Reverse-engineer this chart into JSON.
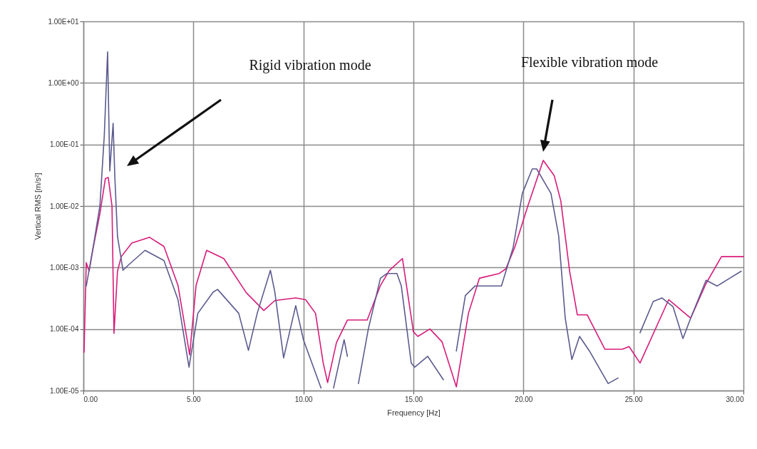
{
  "chart_data": {
    "type": "line",
    "xlabel": "Frequency [Hz]",
    "ylabel": "Vertical RMS [m/s²]",
    "log": "y",
    "grid": true,
    "xlim": [
      0,
      30
    ],
    "ylim": [
      1e-05,
      10
    ],
    "xticks": [
      {
        "value": 0,
        "label": "0.00"
      },
      {
        "value": 5,
        "label": "5.00"
      },
      {
        "value": 10,
        "label": "10.00"
      },
      {
        "value": 15,
        "label": "15.00"
      },
      {
        "value": 20,
        "label": "20.00"
      },
      {
        "value": 25,
        "label": "25.00"
      },
      {
        "value": 30,
        "label": "30.00"
      }
    ],
    "yticks": [
      {
        "value": 1e-05,
        "label": "1.00E-05"
      },
      {
        "value": 0.0001,
        "label": "1.00E-04"
      },
      {
        "value": 0.001,
        "label": "1.00E-03"
      },
      {
        "value": 0.01,
        "label": "1.00E-02"
      },
      {
        "value": 0.1,
        "label": "1.00E-01"
      },
      {
        "value": 1,
        "label": "1.00E+00"
      },
      {
        "value": 10,
        "label": "1.00E+01"
      }
    ],
    "annotations": [
      "Rigid vibration mode",
      "Flexible vibration mode"
    ],
    "series": [
      {
        "color": "#d81b7a",
        "x": [
          0.03,
          0.13,
          0.26,
          0.42,
          0.75,
          1.0,
          1.13,
          1.3,
          1.39,
          1.55,
          1.72,
          2.2,
          3.0,
          3.66,
          4.3,
          4.83,
          5.12,
          5.6,
          6.38,
          7.4,
          8.2,
          8.7,
          9.65,
          10.1,
          10.55,
          10.9,
          11.1,
          11.5,
          12.0,
          12.9,
          13.5,
          13.9,
          14.5,
          15.0,
          15.2,
          15.75,
          16.3,
          16.95,
          17.5,
          18.0,
          18.9,
          19.2,
          19.6,
          20.2,
          20.9,
          21.4,
          21.7,
          22.1,
          22.45,
          22.9,
          23.7,
          24.5,
          24.8,
          25.3,
          26.6,
          27.6,
          28.3,
          29.0,
          30.0
        ],
        "values": [
          4.2e-05,
          0.0012,
          0.00087,
          0.0019,
          0.0075,
          0.028,
          0.029,
          0.01,
          8.5e-05,
          0.00087,
          0.0015,
          0.0025,
          0.0031,
          0.0022,
          0.00051,
          3.8e-05,
          0.00051,
          0.0019,
          0.0014,
          0.00039,
          0.0002,
          0.00029,
          0.00032,
          0.0003,
          0.00018,
          2.8e-05,
          1.35e-05,
          6e-05,
          0.00014,
          0.00014,
          0.00051,
          0.00089,
          0.0014,
          9e-05,
          7.6e-05,
          0.0001,
          6.2e-05,
          1.15e-05,
          0.00018,
          0.00067,
          0.0008,
          0.00095,
          0.0021,
          0.01,
          0.055,
          0.031,
          0.012,
          0.00087,
          0.00017,
          0.00017,
          4.7e-05,
          4.7e-05,
          5.2e-05,
          2.8e-05,
          0.0003,
          0.00015,
          0.00055,
          0.0015,
          0.0015
        ]
      },
      {
        "color": "#5b5b8f",
        "x": [
          0.13,
          0.42,
          0.75,
          0.95,
          1.1,
          1.2,
          1.35,
          1.43,
          1.55,
          1.8,
          2.05,
          2.8,
          3.66,
          4.3,
          4.8,
          5.2,
          5.9,
          6.1,
          7.06,
          7.5,
          7.9,
          8.5,
          8.7,
          9.1,
          9.65,
          10.0,
          10.8,
          11.1,
          11.37,
          11.85,
          12.0,
          12.25,
          12.5,
          12.95,
          13.5,
          13.8,
          14.25,
          14.45,
          14.9,
          15.06,
          15.65,
          16.36,
          16.6,
          16.95,
          17.36,
          17.8,
          19.0,
          19.53,
          19.95,
          20.4,
          20.6,
          21.25,
          21.6,
          21.9,
          22.2,
          22.55,
          23.0,
          23.85,
          24.3,
          24.8,
          25.3,
          25.9,
          26.3,
          26.8,
          27.25,
          27.6,
          28.3,
          28.8,
          29.9
        ],
        "values": [
          0.0005,
          0.0019,
          0.01,
          0.14,
          3.2,
          0.037,
          0.22,
          0.029,
          0.0032,
          0.0009,
          0.0011,
          0.0019,
          0.0013,
          0.0003,
          2.4e-05,
          0.00018,
          0.0004,
          0.00044,
          0.00018,
          4.5e-05,
          0.00018,
          0.0009,
          0.0004,
          3.4e-05,
          0.00024,
          6.7e-05,
          1.1e-05,
          null,
          1.1e-05,
          6.7e-05,
          3.6e-05,
          null,
          1.3e-05,
          0.0001,
          0.00067,
          0.0008,
          0.0008,
          0.0005,
          2.8e-05,
          2.4e-05,
          3.6e-05,
          1.5e-05,
          null,
          4.4e-05,
          0.00035,
          0.0005,
          0.0005,
          0.0021,
          0.016,
          0.04,
          0.04,
          0.016,
          0.0033,
          0.00015,
          3.2e-05,
          7.6e-05,
          4.4e-05,
          1.3e-05,
          1.6e-05,
          null,
          8.7e-05,
          0.00028,
          0.00032,
          0.00023,
          7e-05,
          0.00015,
          0.00062,
          0.0005,
          0.00087
        ]
      }
    ]
  }
}
